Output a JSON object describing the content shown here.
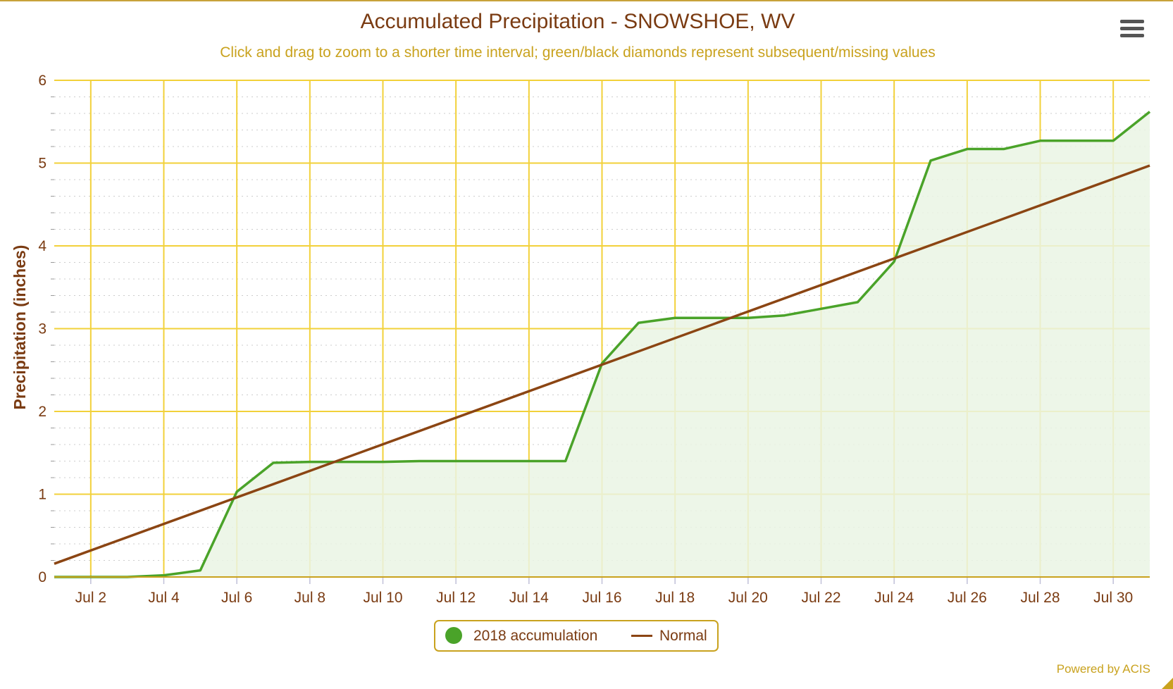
{
  "title": "Accumulated Precipitation - SNOWSHOE, WV",
  "subtitle": "Click and drag to zoom to a shorter time interval; green/black diamonds represent subsequent/missing values",
  "menu": {
    "icon": "hamburger-menu-icon"
  },
  "legend": {
    "items": [
      {
        "label": "2018 accumulation",
        "color": "#4aa329",
        "symbol": "circle"
      },
      {
        "label": "Normal",
        "color": "#8b4513",
        "symbol": "line"
      }
    ]
  },
  "credits": "Powered by ACIS",
  "colors": {
    "grid": "#f2d13a",
    "axis": "#c9a21e",
    "area_fill": "#eaf4e4",
    "text": "#7a3b12"
  },
  "chart_data": {
    "type": "area",
    "title": "Accumulated Precipitation - SNOWSHOE, WV",
    "subtitle": "Click and drag to zoom to a shorter time interval; green/black diamonds represent subsequent/missing values",
    "xlabel": "",
    "ylabel": "Precipitation (inches)",
    "ylim": [
      0,
      6
    ],
    "yticks": [
      0,
      1,
      2,
      3,
      4,
      5,
      6
    ],
    "x_tick_labels": [
      "Jul 2",
      "Jul 4",
      "Jul 6",
      "Jul 8",
      "Jul 10",
      "Jul 12",
      "Jul 14",
      "Jul 16",
      "Jul 18",
      "Jul 20",
      "Jul 22",
      "Jul 24",
      "Jul 26",
      "Jul 28",
      "Jul 30"
    ],
    "x_tick_days": [
      2,
      4,
      6,
      8,
      10,
      12,
      14,
      16,
      18,
      20,
      22,
      24,
      26,
      28,
      30
    ],
    "xlim": [
      1,
      31
    ],
    "grid": true,
    "legend_position": "bottom-center",
    "series": [
      {
        "name": "2018 accumulation",
        "type": "area",
        "color": "#4aa329",
        "x": [
          1,
          2,
          3,
          4,
          5,
          6,
          7,
          8,
          9,
          10,
          11,
          12,
          13,
          14,
          15,
          16,
          17,
          18,
          19,
          20,
          21,
          22,
          23,
          24,
          25,
          26,
          27,
          28,
          29,
          30,
          31
        ],
        "values": [
          0.0,
          0.0,
          0.0,
          0.02,
          0.08,
          1.03,
          1.38,
          1.39,
          1.39,
          1.39,
          1.4,
          1.4,
          1.4,
          1.4,
          1.4,
          2.58,
          3.07,
          3.13,
          3.13,
          3.13,
          3.16,
          3.24,
          3.32,
          3.81,
          5.03,
          5.17,
          5.17,
          5.27,
          5.27,
          5.27,
          5.62
        ]
      },
      {
        "name": "Normal",
        "type": "line",
        "color": "#8b4513",
        "x": [
          1,
          31
        ],
        "values": [
          0.16,
          4.97
        ]
      }
    ]
  }
}
